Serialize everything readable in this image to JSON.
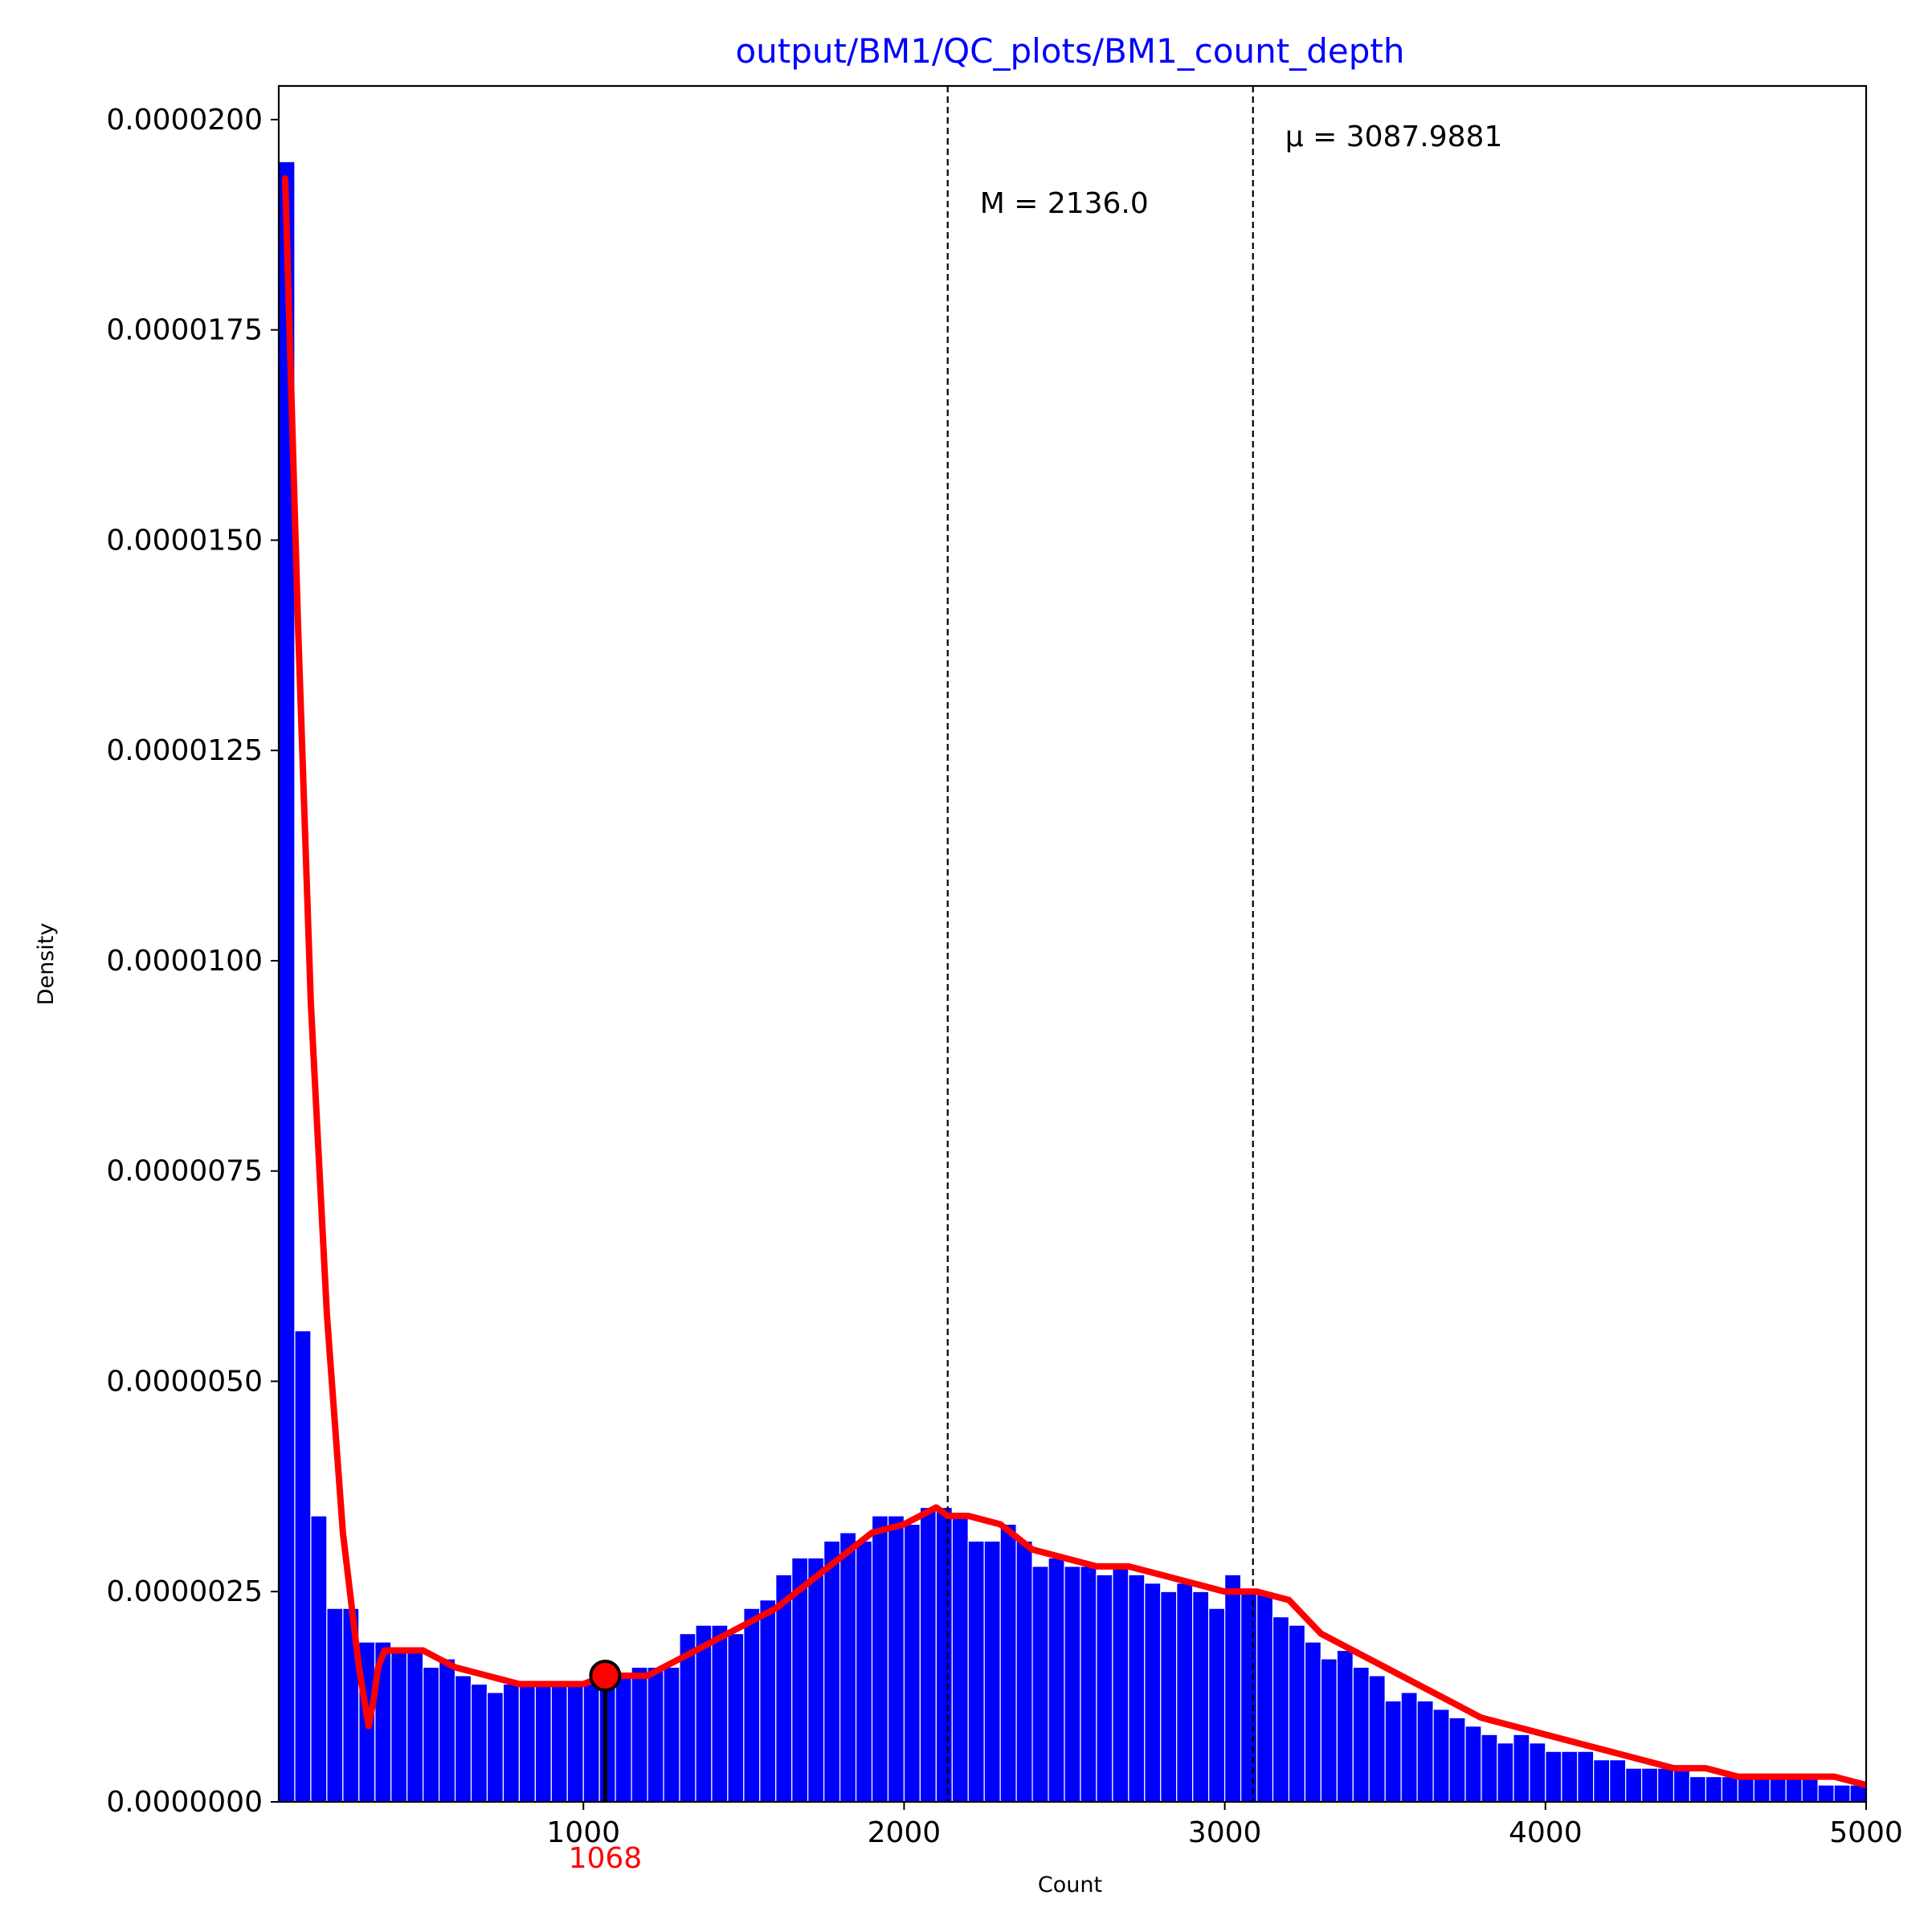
{
  "chart_data": {
    "type": "bar",
    "title": "output/BM1/QC_plots/BM1_count_depth",
    "xlabel": "Count",
    "ylabel": "Density",
    "xlim": [
      50,
      5000
    ],
    "ylim": [
      0,
      2.04e-05
    ],
    "xticks": [
      1000,
      2000,
      3000,
      4000,
      5000
    ],
    "xtick_labels": [
      "1000",
      "2000",
      "3000",
      "4000",
      "5000"
    ],
    "yticks": [
      0,
      2.5e-06,
      5e-06,
      7.5e-06,
      1e-05,
      1.25e-05,
      1.5e-05,
      1.75e-05,
      2e-05
    ],
    "ytick_labels": [
      "0.0000000",
      "0.0000025",
      "0.0000050",
      "0.0000075",
      "0.0000100",
      "0.0000125",
      "0.0000150",
      "0.0000175",
      "0.0000200"
    ],
    "grid": false,
    "histogram": {
      "bin_start": 50,
      "bin_width": 50,
      "values": [
        1.95e-05,
        5.6e-06,
        3.4e-06,
        2.3e-06,
        2.3e-06,
        1.9e-06,
        1.9e-06,
        1.8e-06,
        1.8e-06,
        1.6e-06,
        1.7e-06,
        1.5e-06,
        1.4e-06,
        1.3e-06,
        1.4e-06,
        1.4e-06,
        1.4e-06,
        1.4e-06,
        1.4e-06,
        1.4e-06,
        1.4e-06,
        1.5e-06,
        1.6e-06,
        1.6e-06,
        1.6e-06,
        2e-06,
        2.1e-06,
        2.1e-06,
        2e-06,
        2.3e-06,
        2.4e-06,
        2.7e-06,
        2.9e-06,
        2.9e-06,
        3.1e-06,
        3.2e-06,
        3.1e-06,
        3.4e-06,
        3.4e-06,
        3.3e-06,
        3.5e-06,
        3.5e-06,
        3.4e-06,
        3.1e-06,
        3.1e-06,
        3.3e-06,
        3.1e-06,
        2.8e-06,
        2.9e-06,
        2.8e-06,
        2.8e-06,
        2.7e-06,
        2.8e-06,
        2.7e-06,
        2.6e-06,
        2.5e-06,
        2.6e-06,
        2.5e-06,
        2.3e-06,
        2.7e-06,
        2.5e-06,
        2.5e-06,
        2.2e-06,
        2.1e-06,
        1.9e-06,
        1.7e-06,
        1.8e-06,
        1.6e-06,
        1.5e-06,
        1.2e-06,
        1.3e-06,
        1.2e-06,
        1.1e-06,
        1e-06,
        9e-07,
        8e-07,
        7e-07,
        8e-07,
        7e-07,
        6e-07,
        6e-07,
        6e-07,
        5e-07,
        5e-07,
        4e-07,
        4e-07,
        4e-07,
        4e-07,
        3e-07,
        3e-07,
        3e-07,
        3e-07,
        3e-07,
        3e-07,
        3e-07,
        3e-07,
        2e-07,
        2e-07,
        2e-07
      ],
      "color": "#0000ff"
    },
    "kde": {
      "color": "#ff0000",
      "x": [
        70,
        110,
        150,
        200,
        250,
        300,
        330,
        345,
        360,
        380,
        410,
        450,
        500,
        550,
        600,
        700,
        800,
        900,
        1000,
        1068,
        1100,
        1200,
        1300,
        1400,
        1500,
        1600,
        1700,
        1800,
        1900,
        2000,
        2050,
        2100,
        2136,
        2200,
        2300,
        2400,
        2500,
        2600,
        2700,
        2800,
        2900,
        3000,
        3100,
        3200,
        3300,
        3400,
        3500,
        3600,
        3700,
        3800,
        3900,
        4000,
        4100,
        4200,
        4300,
        4400,
        4500,
        4600,
        4700,
        4800,
        4900,
        5000
      ],
      "y": [
        1.93e-05,
        1.4e-05,
        9.5e-06,
        5.8e-06,
        3.2e-06,
        1.6e-06,
        9e-07,
        1.2e-06,
        1.6e-06,
        1.8e-06,
        1.8e-06,
        1.8e-06,
        1.8e-06,
        1.7e-06,
        1.6e-06,
        1.5e-06,
        1.4e-06,
        1.4e-06,
        1.4e-06,
        1.5e-06,
        1.5e-06,
        1.5e-06,
        1.7e-06,
        1.9e-06,
        2.1e-06,
        2.3e-06,
        2.6e-06,
        2.9e-06,
        3.2e-06,
        3.3e-06,
        3.4e-06,
        3.5e-06,
        3.4e-06,
        3.4e-06,
        3.3e-06,
        3e-06,
        2.9e-06,
        2.8e-06,
        2.8e-06,
        2.7e-06,
        2.6e-06,
        2.5e-06,
        2.5e-06,
        2.4e-06,
        2e-06,
        1.8e-06,
        1.6e-06,
        1.4e-06,
        1.2e-06,
        1e-06,
        9e-07,
        8e-07,
        7e-07,
        6e-07,
        5e-07,
        4e-07,
        4e-07,
        3e-07,
        3e-07,
        3e-07,
        3e-07,
        2e-07
      ]
    },
    "vlines": [
      {
        "x": 2136.0,
        "label": "$M = 2136.0$",
        "text": "M = 2136.0",
        "style": "dashed"
      },
      {
        "x": 3087.9881,
        "label": "$\\mu = 3087.9881$",
        "text": "μ = 3087.9881",
        "style": "dashed"
      }
    ],
    "marker": {
      "x": 1068,
      "y": 1.5e-06,
      "label": "1068",
      "color": "#ff0000"
    }
  },
  "colors": {
    "title": "#0000ff",
    "bars": "#0000ff",
    "kde": "#ff0000",
    "marker_label": "#ff0000"
  }
}
